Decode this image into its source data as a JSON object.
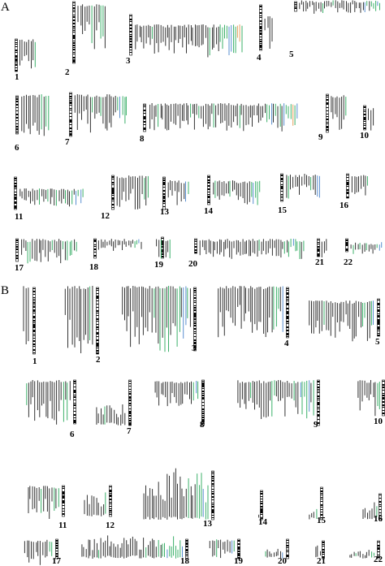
{
  "panels": [
    {
      "id": "A",
      "chromosomes": [
        "1",
        "2",
        "3",
        "4",
        "5",
        "6",
        "7",
        "8",
        "9",
        "10",
        "11",
        "12",
        "13",
        "14",
        "15",
        "16",
        "17",
        "18",
        "19",
        "20",
        "21",
        "22"
      ]
    },
    {
      "id": "B",
      "chromosomes": [
        "1",
        "2",
        "3",
        "4",
        "5",
        "6",
        "7",
        "8",
        "9",
        "10",
        "11",
        "12",
        "13",
        "14",
        "15",
        "16",
        "17",
        "18",
        "19",
        "20",
        "21",
        "22"
      ]
    }
  ],
  "colors": {
    "marks": "#333333",
    "green": "#3cb06a",
    "blue": "#5a8fd0",
    "orange": "#e8a060",
    "ideogram": "#000000"
  }
}
